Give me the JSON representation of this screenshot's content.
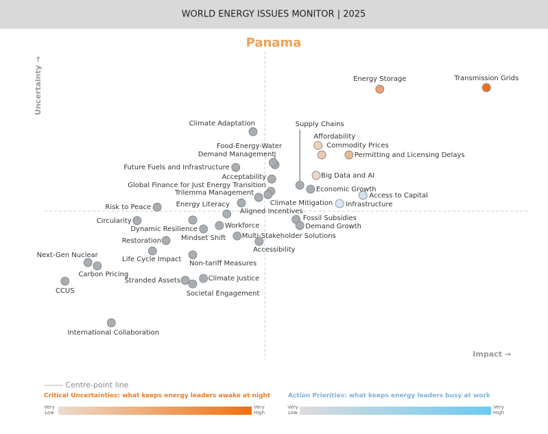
{
  "chart_data": {
    "type": "scatter",
    "header": "WORLD ENERGY ISSUES MONITOR | 2025",
    "title": "Panama",
    "xlabel": "Impact →",
    "ylabel": "Uncertainty →",
    "xlim": [
      0,
      100
    ],
    "ylim": [
      0,
      100
    ],
    "points": [
      {
        "name": "Energy Storage",
        "x": 74.6,
        "y": 89.9,
        "color": "#eda070"
      },
      {
        "name": "Transmission Grids",
        "x": 97.4,
        "y": 90.4,
        "color": "#f07020"
      },
      {
        "name": "Climate Adaptation",
        "x": 47.5,
        "y": 76.0,
        "color": "#a9aeb2"
      },
      {
        "name": "Supply Chains",
        "x": 57.5,
        "y": 58.5,
        "color": "#a9aeb2"
      },
      {
        "name": "Affordability",
        "x": 61.4,
        "y": 71.5,
        "color": "#ecd0bc"
      },
      {
        "name": "Commodity Prices",
        "x": 62.2,
        "y": 68.4,
        "color": "#e9ccb4"
      },
      {
        "name": "Permitting and Licensing Delays",
        "x": 68.0,
        "y": 68.4,
        "color": "#e8b890"
      },
      {
        "name": "Food-Energy-Water",
        "x": 52.2,
        "y": 65.2,
        "color": "#a9aeb2"
      },
      {
        "name": "Demand Management",
        "x": 51.8,
        "y": 65.9,
        "color": "#a9aeb2"
      },
      {
        "name": "Future Fuels and Infrastructure",
        "x": 43.8,
        "y": 64.3,
        "color": "#a9aeb2"
      },
      {
        "name": "Big Data and AI",
        "x": 61.0,
        "y": 61.7,
        "color": "#e6d8cc"
      },
      {
        "name": "Acceptability",
        "x": 51.5,
        "y": 60.5,
        "color": "#a9aeb2"
      },
      {
        "name": "Global Finance for Just Energy Transition",
        "x": 51.3,
        "y": 56.5,
        "color": "#a9aeb2"
      },
      {
        "name": "Economic Growth",
        "x": 59.8,
        "y": 57.2,
        "color": "#a9aeb2"
      },
      {
        "name": "Trilemma Management",
        "x": 48.7,
        "y": 54.5,
        "color": "#a9aeb2"
      },
      {
        "name": "Climate Mitigation",
        "x": 50.7,
        "y": 55.4,
        "color": "#a9aeb2"
      },
      {
        "name": "Access to Capital",
        "x": 71.0,
        "y": 55.2,
        "color": "#cfe3f0"
      },
      {
        "name": "Infrastructure",
        "x": 66.0,
        "y": 52.5,
        "color": "#dce8f3"
      },
      {
        "name": "Energy Literacy",
        "x": 45.0,
        "y": 52.7,
        "color": "#a9aeb2"
      },
      {
        "name": "Risk to Peace",
        "x": 27.0,
        "y": 51.3,
        "color": "#a9aeb2"
      },
      {
        "name": "Aligned Incentives",
        "x": 41.9,
        "y": 49.1,
        "color": "#a9aeb2"
      },
      {
        "name": "Fossil Subsidies",
        "x": 56.7,
        "y": 47.3,
        "color": "#a9aeb2"
      },
      {
        "name": "Demand Growth",
        "x": 57.5,
        "y": 45.3,
        "color": "#a9aeb2"
      },
      {
        "name": "Circularity",
        "x": 22.7,
        "y": 46.9,
        "color": "#a9aeb2"
      },
      {
        "name": "Workforce",
        "x": 40.3,
        "y": 45.3,
        "color": "#a9aeb2"
      },
      {
        "name": "Dynamic Resilience",
        "x": 34.6,
        "y": 47.1,
        "color": "#a9aeb2"
      },
      {
        "name": "Mindset Shift",
        "x": 36.9,
        "y": 44.2,
        "color": "#a9aeb2"
      },
      {
        "name": "Multi-Stakeholder Solutions",
        "x": 44.1,
        "y": 41.9,
        "color": "#a9aeb2"
      },
      {
        "name": "Restoration",
        "x": 28.9,
        "y": 40.4,
        "color": "#a9aeb2"
      },
      {
        "name": "Accessibility",
        "x": 48.8,
        "y": 40.1,
        "color": "#a9aeb2"
      },
      {
        "name": "Life Cycle Impact",
        "x": 26.0,
        "y": 37.0,
        "color": "#a9aeb2"
      },
      {
        "name": "Non-tariff Measures",
        "x": 34.6,
        "y": 35.7,
        "color": "#a9aeb2"
      },
      {
        "name": "Next-Gen Nuclear",
        "x": 12.2,
        "y": 33.2,
        "color": "#a9aeb2"
      },
      {
        "name": "Carbon Pricing",
        "x": 14.2,
        "y": 32.1,
        "color": "#a9aeb2"
      },
      {
        "name": "CCUS",
        "x": 7.3,
        "y": 27.1,
        "color": "#a9aeb2"
      },
      {
        "name": "Stranded Assets",
        "x": 33.0,
        "y": 27.4,
        "color": "#a9aeb2"
      },
      {
        "name": "Climate Justice",
        "x": 36.9,
        "y": 28.0,
        "color": "#a9aeb2"
      },
      {
        "name": "Societal Engagement",
        "x": 34.6,
        "y": 26.2,
        "color": "#a9aeb2"
      },
      {
        "name": "International Collaboration",
        "x": 17.2,
        "y": 13.5,
        "color": "#a9aeb2"
      }
    ],
    "legend": {
      "centre_line": "------- Centre-point line",
      "critical": "Critical Uncertainties: what keeps energy leaders awake at night",
      "action": "Action Priorities: what keeps energy leaders busy at work",
      "low": "Very Low",
      "high": "Very High"
    }
  }
}
